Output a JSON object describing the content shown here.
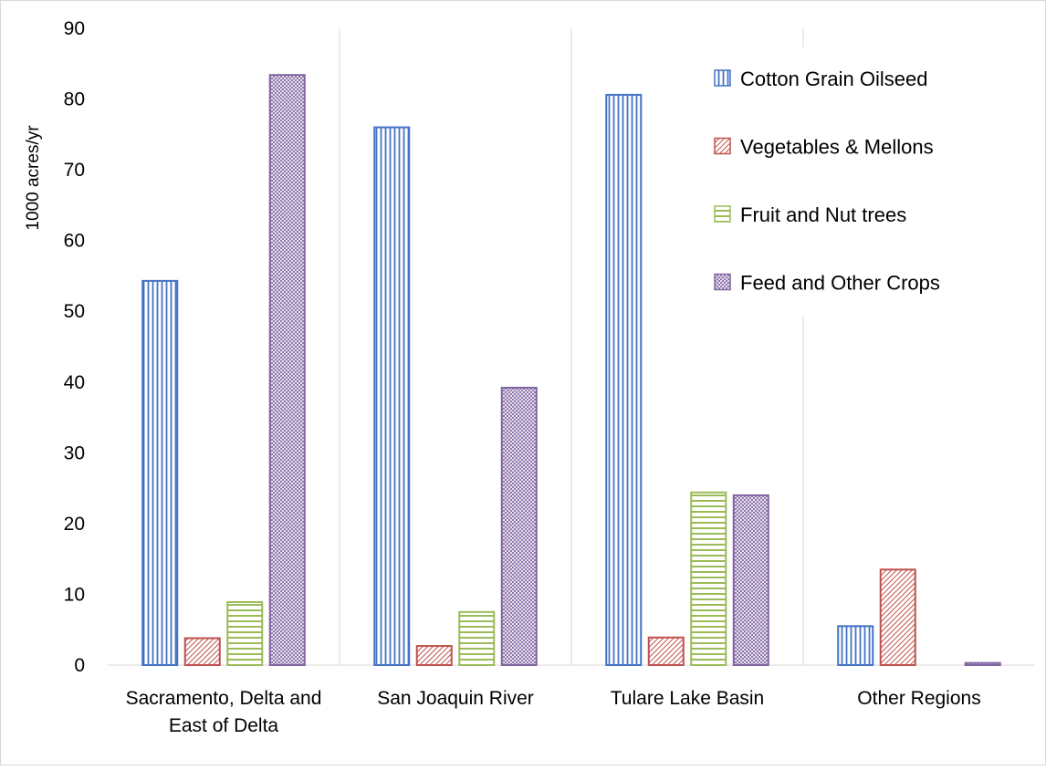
{
  "chart_data": {
    "type": "bar",
    "ylabel": "1000 acres/yr",
    "ylim": [
      0,
      90
    ],
    "yticks": [
      0,
      10,
      20,
      30,
      40,
      50,
      60,
      70,
      80,
      90
    ],
    "grid": "vertical separators between category groups",
    "legend_position": "top-right",
    "categories": [
      [
        "Sacramento, Delta and",
        "East of Delta"
      ],
      [
        "San Joaquin River"
      ],
      [
        "Tulare Lake Basin"
      ],
      [
        "Other Regions"
      ]
    ],
    "series": [
      {
        "name": "Cotton Grain Oilseed",
        "color": "#4472C4",
        "pattern": "vertical-lines",
        "values": [
          54.3,
          76.0,
          80.6,
          5.5
        ]
      },
      {
        "name": "Vegetables & Mellons",
        "color": "#C0504D",
        "pattern": "diagonal-hatch",
        "values": [
          3.8,
          2.7,
          3.9,
          13.5
        ]
      },
      {
        "name": "Fruit and Nut trees",
        "color": "#9BBB59",
        "pattern": "horizontal-lines",
        "values": [
          8.9,
          7.5,
          24.4,
          0
        ]
      },
      {
        "name": "Feed and Other Crops",
        "color": "#8064A2",
        "pattern": "dense-crosshatch",
        "values": [
          83.4,
          39.2,
          24.0,
          0.3
        ]
      }
    ]
  }
}
